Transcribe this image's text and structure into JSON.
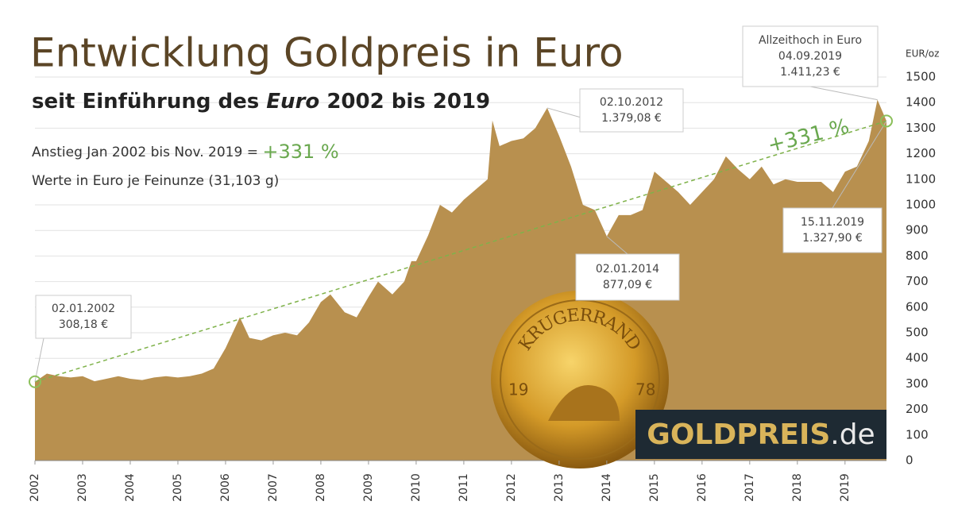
{
  "chart_data": {
    "type": "area",
    "title": "Entwicklung Goldpreis in Euro",
    "subtitle": {
      "before": "seit Einführung des ",
      "emphasis": "Euro",
      "after": " 2002 bis 2019"
    },
    "note_rise": {
      "text": "Anstieg Jan 2002 bis Nov. 2019 = ",
      "highlight": "+331 %"
    },
    "note_units": "Werte in Euro je Feinunze (31,103 g)",
    "trend_label": "+331 %",
    "y_unit": "EUR/oz",
    "logo": {
      "main": "GOLDPREIS",
      "suffix": ".de"
    },
    "coin": {
      "legend": "KRUGERRAND",
      "year_left": "19",
      "year_right": "78"
    },
    "color": "#b8904f",
    "xlim": [
      2002,
      2019.87
    ],
    "xticks": [
      2002,
      2003,
      2004,
      2005,
      2006,
      2007,
      2008,
      2009,
      2010,
      2011,
      2012,
      2013,
      2014,
      2015,
      2016,
      2017,
      2018,
      2019
    ],
    "ylim": [
      0,
      1500
    ],
    "yticks": [
      0,
      100,
      200,
      300,
      400,
      500,
      600,
      700,
      800,
      900,
      1000,
      1100,
      1200,
      1300,
      1400,
      1500
    ],
    "grid": true,
    "x": [
      2002.0,
      2002.25,
      2002.5,
      2002.75,
      2003.0,
      2003.25,
      2003.5,
      2003.75,
      2004.0,
      2004.25,
      2004.5,
      2004.75,
      2005.0,
      2005.25,
      2005.5,
      2005.75,
      2006.0,
      2006.3,
      2006.5,
      2006.75,
      2007.0,
      2007.25,
      2007.5,
      2007.75,
      2008.0,
      2008.2,
      2008.5,
      2008.75,
      2009.0,
      2009.2,
      2009.5,
      2009.75,
      2009.9,
      2010.0,
      2010.25,
      2010.5,
      2010.75,
      2011.0,
      2011.25,
      2011.5,
      2011.6,
      2011.75,
      2012.0,
      2012.25,
      2012.5,
      2012.75,
      2013.0,
      2013.25,
      2013.5,
      2013.75,
      2014.0,
      2014.25,
      2014.5,
      2014.75,
      2015.0,
      2015.25,
      2015.5,
      2015.75,
      2016.0,
      2016.25,
      2016.5,
      2016.75,
      2017.0,
      2017.25,
      2017.5,
      2017.75,
      2018.0,
      2018.25,
      2018.5,
      2018.75,
      2019.0,
      2019.25,
      2019.5,
      2019.68,
      2019.87
    ],
    "series": [
      {
        "values": [
          308.18,
          340,
          330,
          325,
          330,
          310,
          320,
          330,
          320,
          315,
          325,
          330,
          325,
          330,
          340,
          360,
          440,
          560,
          480,
          470,
          490,
          500,
          490,
          540,
          620,
          650,
          580,
          560,
          640,
          700,
          650,
          700,
          780,
          780,
          880,
          1000,
          970,
          1020,
          1060,
          1100,
          1330,
          1230,
          1250,
          1260,
          1300,
          1379.08,
          1270,
          1150,
          1000,
          980,
          877.09,
          960,
          960,
          980,
          1130,
          1090,
          1050,
          1000,
          1050,
          1100,
          1190,
          1140,
          1100,
          1150,
          1080,
          1100,
          1090,
          1090,
          1090,
          1050,
          1130,
          1150,
          1250,
          1411.23,
          1327.9
        ]
      }
    ],
    "annotations": [
      {
        "x": 2002.0,
        "y": 308.18,
        "date": "02.01.2002",
        "label": "308,18 €"
      },
      {
        "x": 2012.75,
        "y": 1379.08,
        "date": "02.10.2012",
        "label": "1.379,08 €"
      },
      {
        "x": 2014.0,
        "y": 877.09,
        "date": "02.01.2014",
        "label": "877,09 €"
      },
      {
        "x": 2019.68,
        "y": 1411.23,
        "heading": "Allzeithoch in Euro",
        "date": "04.09.2019",
        "label": "1.411,23 €"
      },
      {
        "x": 2019.87,
        "y": 1327.9,
        "date": "15.11.2019",
        "label": "1.327,90 €"
      }
    ]
  }
}
